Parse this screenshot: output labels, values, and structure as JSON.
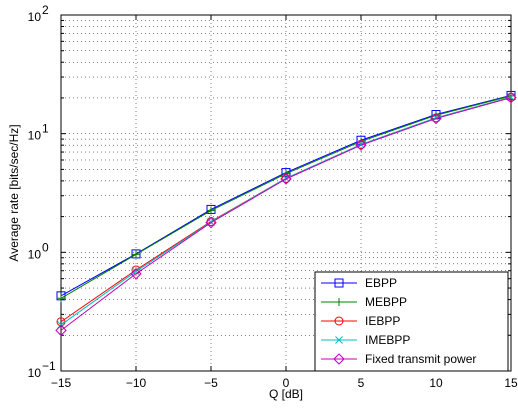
{
  "chart_data": {
    "type": "line",
    "xlabel": "Q [dB]",
    "ylabel": "Average rate [bits/sec/Hz]",
    "x": [
      -15,
      -10,
      -5,
      0,
      5,
      10,
      15
    ],
    "xlim": [
      -15,
      15
    ],
    "ylim": [
      0.1,
      100
    ],
    "yscale": "log",
    "grid": true,
    "legend_position": "bottom-right",
    "xticks": [
      "−15",
      "−10",
      "−5",
      "0",
      "5",
      "10",
      "15"
    ],
    "yticks": [
      {
        "base": "10",
        "exp": "−1",
        "value": 0.1
      },
      {
        "base": "10",
        "exp": "0",
        "value": 1
      },
      {
        "base": "10",
        "exp": "1",
        "value": 10
      },
      {
        "base": "10",
        "exp": "2",
        "value": 100
      }
    ],
    "series": [
      {
        "name": "EBPP",
        "color": "#0000ff",
        "marker": "square",
        "values": [
          0.43,
          0.97,
          2.3,
          4.7,
          8.8,
          14.5,
          21.0
        ]
      },
      {
        "name": "MEBPP",
        "color": "#008000",
        "marker": "plus",
        "values": [
          0.41,
          0.96,
          2.25,
          4.6,
          8.6,
          14.3,
          20.8
        ]
      },
      {
        "name": "IEBPP",
        "color": "#ff0000",
        "marker": "circle",
        "values": [
          0.26,
          0.71,
          1.82,
          4.2,
          8.1,
          13.6,
          20.3
        ]
      },
      {
        "name": "IMEBPP",
        "color": "#00bfbf",
        "marker": "x",
        "values": [
          0.245,
          0.69,
          1.8,
          4.2,
          8.1,
          13.6,
          20.3
        ]
      },
      {
        "name": "Fixed transmit power",
        "color": "#bf00bf",
        "marker": "diamond",
        "values": [
          0.22,
          0.66,
          1.78,
          4.15,
          8.0,
          13.4,
          20.1
        ]
      }
    ]
  }
}
